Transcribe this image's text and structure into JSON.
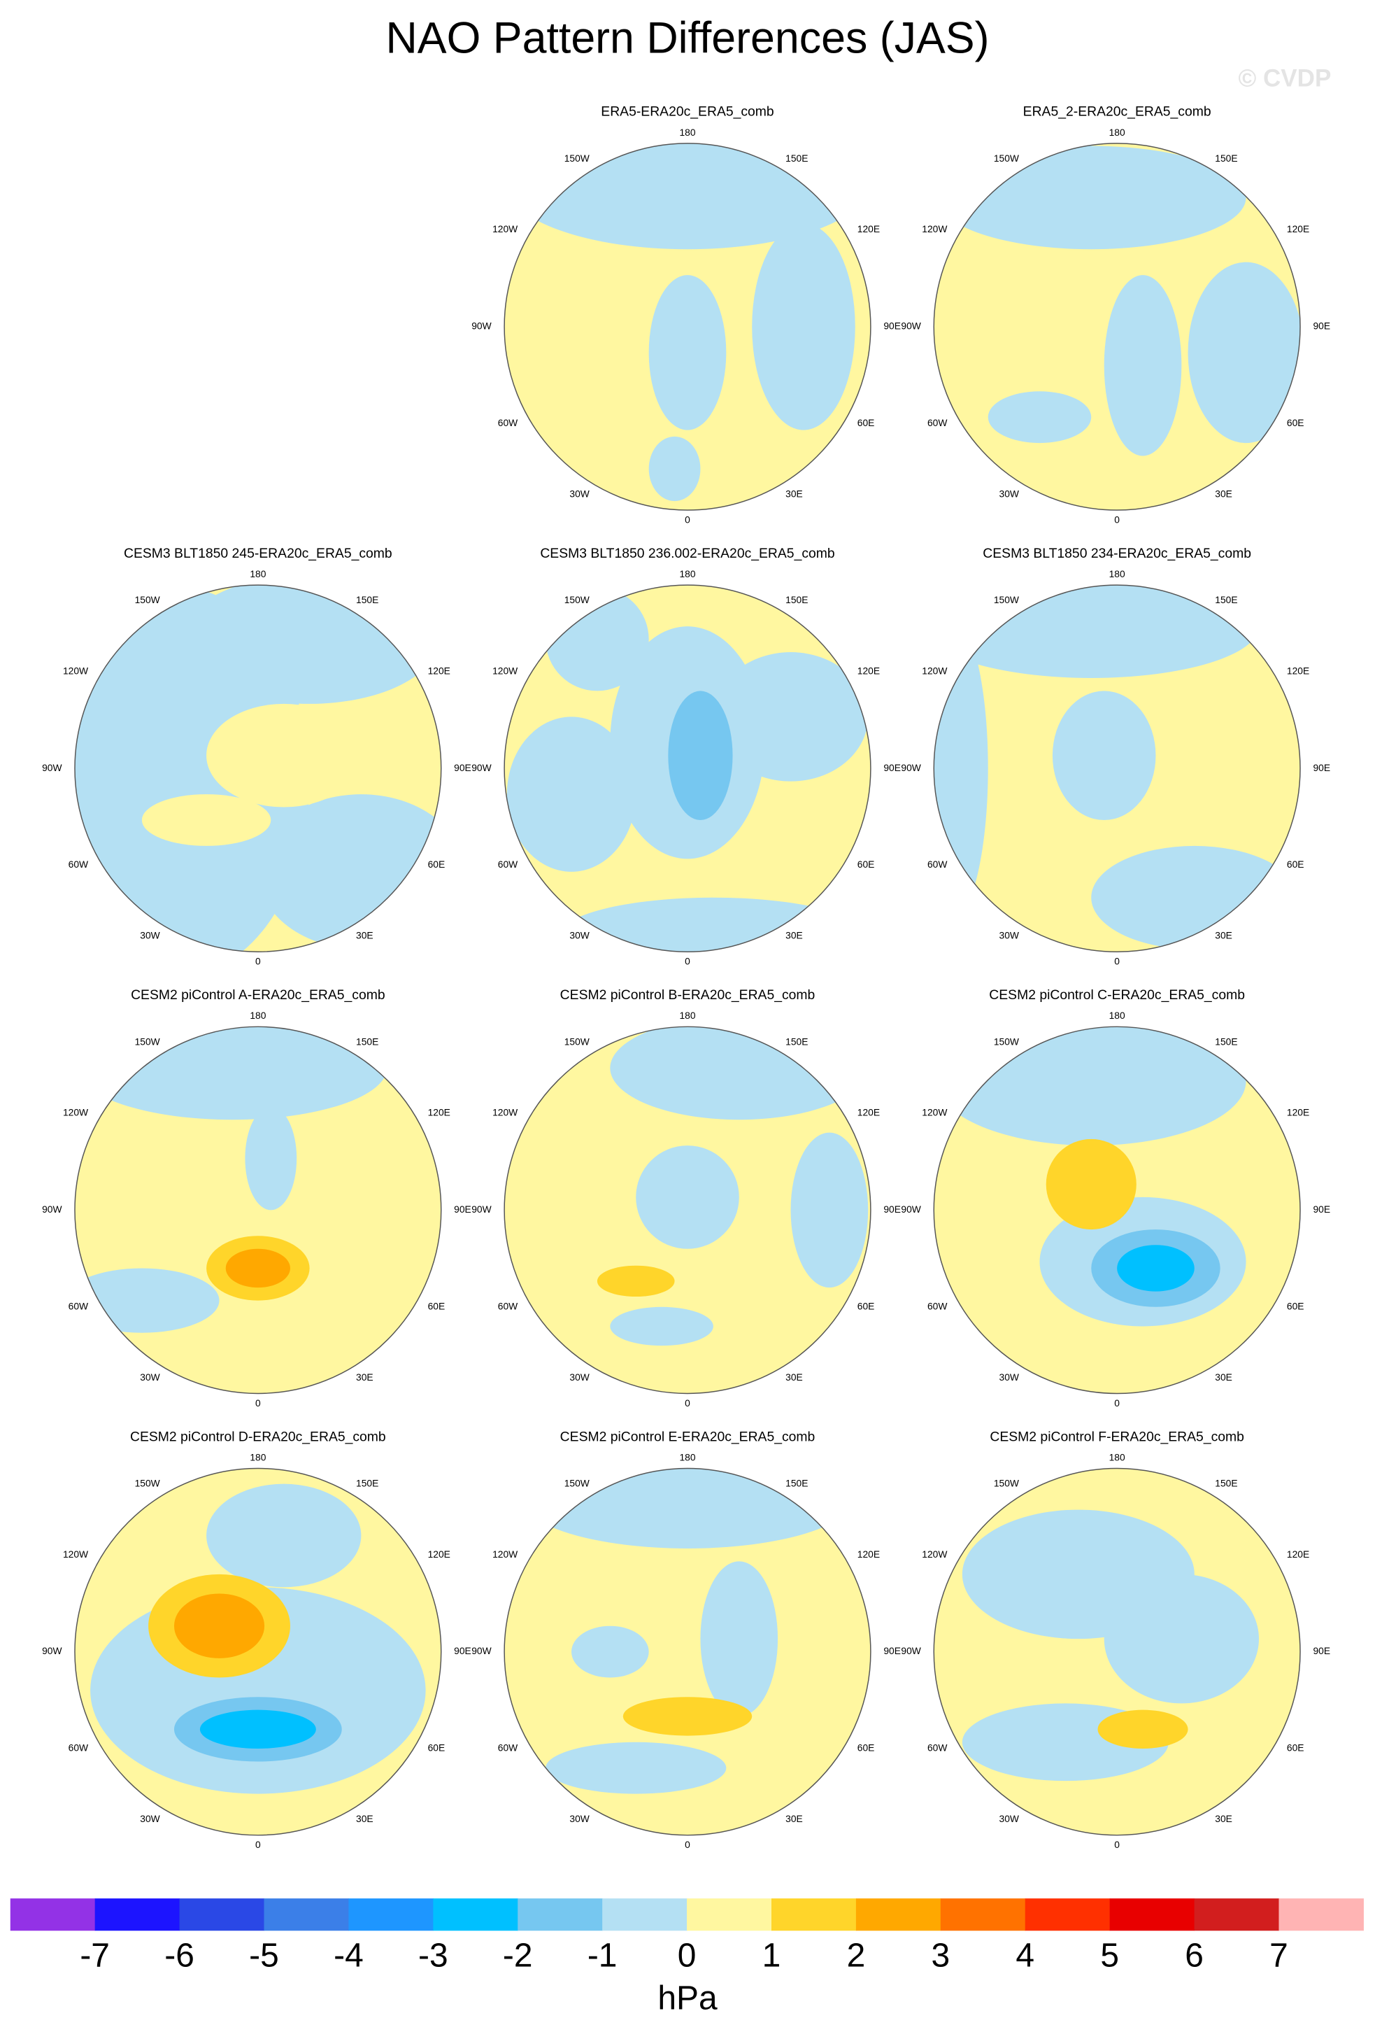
{
  "title": "NAO Pattern Differences (JAS)",
  "watermark": "© CVDP",
  "longitude_labels": [
    "180",
    "150E",
    "120E",
    "90E",
    "60E",
    "30E",
    "0",
    "30W",
    "60W",
    "90W",
    "120W",
    "150W"
  ],
  "panels": [
    {
      "title": "ERA5-ERA20c_ERA5_comb"
    },
    {
      "title": "ERA5_2-ERA20c_ERA5_comb"
    },
    {
      "title": "CESM3 BLT1850 245-ERA20c_ERA5_comb"
    },
    {
      "title": "CESM3 BLT1850 236.002-ERA20c_ERA5_comb"
    },
    {
      "title": "CESM3 BLT1850 234-ERA20c_ERA5_comb"
    },
    {
      "title": "CESM2 piControl A-ERA20c_ERA5_comb"
    },
    {
      "title": "CESM2 piControl B-ERA20c_ERA5_comb"
    },
    {
      "title": "CESM2 piControl C-ERA20c_ERA5_comb"
    },
    {
      "title": "CESM2 piControl D-ERA20c_ERA5_comb"
    },
    {
      "title": "CESM2 piControl E-ERA20c_ERA5_comb"
    },
    {
      "title": "CESM2 piControl F-ERA20c_ERA5_comb"
    }
  ],
  "colorbar": {
    "colors": [
      "#9332e6",
      "#1c14ff",
      "#2a48e6",
      "#3b7fe8",
      "#1e96ff",
      "#00c0ff",
      "#76c7f0",
      "#b4e0f3",
      "#fff7a0",
      "#ffd52a",
      "#ffa800",
      "#ff7200",
      "#ff3000",
      "#e80000",
      "#d21e1e",
      "#ffb4b4"
    ],
    "lim": [
      -8,
      8
    ],
    "ticks": [
      -7,
      -6,
      -5,
      -4,
      -3,
      -2,
      -1,
      0,
      1,
      2,
      3,
      4,
      5,
      6,
      7
    ],
    "label": "hPa"
  }
}
